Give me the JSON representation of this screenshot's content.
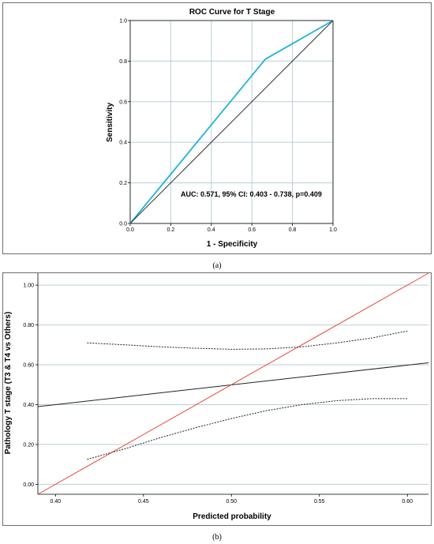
{
  "chart_data": [
    {
      "type": "line",
      "title": "ROC Curve for T Stage",
      "xlabel": "1 - Specificity",
      "ylabel": "Sensitivity",
      "xlim": [
        0,
        1
      ],
      "ylim": [
        0,
        1
      ],
      "x_ticks": [
        "0.0",
        "0.2",
        "0.4",
        "0.6",
        "0.8",
        "1.0"
      ],
      "y_ticks": [
        "0.0",
        "0.2",
        "0.4",
        "0.6",
        "0.8",
        "1.0"
      ],
      "grid": true,
      "annotation": "AUC: 0.571, 95% CI: 0.403 - 0.738, p=0.409",
      "caption": "(a)",
      "colors": {
        "roc": "#1fb3d8",
        "reference": "#333333"
      },
      "series": [
        {
          "points": [
            [
              0,
              0
            ],
            [
              0.667,
              0.81
            ],
            [
              1,
              1
            ]
          ]
        },
        {
          "points": [
            [
              0,
              0
            ],
            [
              1,
              1
            ]
          ]
        }
      ]
    },
    {
      "type": "line",
      "title": "",
      "xlabel": "Predicted probability",
      "ylabel": "Pathology T stage (T3 & T4 vs Others)",
      "xlim": [
        0.39,
        0.612
      ],
      "ylim": [
        -0.05,
        1.06
      ],
      "x_ticks": [
        "0.40",
        "0.45",
        "0.50",
        "0.55",
        "0.60"
      ],
      "y_ticks": [
        "0.00",
        "0.20",
        "0.40",
        "0.60",
        "0.80",
        "1.00"
      ],
      "grid": true,
      "caption": "(b)",
      "colors": {
        "fit": "#222222",
        "ideal": "#e8483a",
        "ci": "#222222"
      },
      "series": [
        {
          "points": [
            [
              0.39,
              0.39
            ],
            [
              0.612,
              0.61
            ]
          ]
        },
        {
          "points": [
            [
              0.39,
              -0.05
            ],
            [
              0.612,
              1.06
            ]
          ]
        },
        {
          "points": [
            [
              0.418,
              0.71
            ],
            [
              0.44,
              0.7
            ],
            [
              0.46,
              0.69
            ],
            [
              0.48,
              0.683
            ],
            [
              0.5,
              0.678
            ],
            [
              0.52,
              0.68
            ],
            [
              0.54,
              0.69
            ],
            [
              0.56,
              0.71
            ],
            [
              0.58,
              0.735
            ],
            [
              0.6,
              0.77
            ]
          ]
        },
        {
          "points": [
            [
              0.418,
              0.125
            ],
            [
              0.44,
              0.18
            ],
            [
              0.46,
              0.235
            ],
            [
              0.48,
              0.285
            ],
            [
              0.5,
              0.33
            ],
            [
              0.52,
              0.37
            ],
            [
              0.54,
              0.4
            ],
            [
              0.56,
              0.42
            ],
            [
              0.58,
              0.43
            ],
            [
              0.6,
              0.43
            ]
          ]
        }
      ]
    }
  ]
}
